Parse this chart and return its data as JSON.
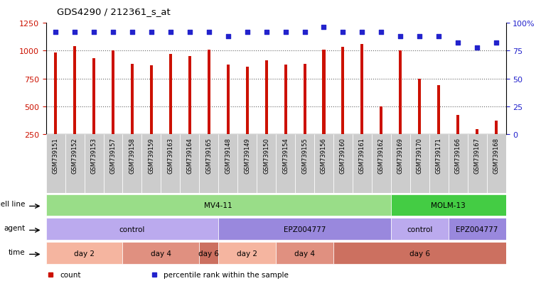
{
  "title": "GDS4290 / 212361_s_at",
  "samples": [
    "GSM739151",
    "GSM739152",
    "GSM739153",
    "GSM739157",
    "GSM739158",
    "GSM739159",
    "GSM739163",
    "GSM739164",
    "GSM739165",
    "GSM739148",
    "GSM739149",
    "GSM739150",
    "GSM739154",
    "GSM739155",
    "GSM739156",
    "GSM739160",
    "GSM739161",
    "GSM739162",
    "GSM739169",
    "GSM739170",
    "GSM739171",
    "GSM739166",
    "GSM739167",
    "GSM739168"
  ],
  "counts": [
    980,
    1040,
    930,
    1000,
    880,
    870,
    970,
    950,
    1010,
    875,
    855,
    910,
    875,
    880,
    1010,
    1035,
    1060,
    500,
    1000,
    745,
    690,
    420,
    295,
    370
  ],
  "percentile_ranks": [
    92,
    92,
    92,
    92,
    92,
    92,
    92,
    92,
    92,
    88,
    92,
    92,
    92,
    92,
    96,
    92,
    92,
    92,
    88,
    88,
    88,
    82,
    78,
    82
  ],
  "ylim_left": [
    250,
    1250
  ],
  "ylim_right": [
    0,
    100
  ],
  "yticks_left": [
    250,
    500,
    750,
    1000,
    1250
  ],
  "yticks_right": [
    0,
    25,
    50,
    75,
    100
  ],
  "bar_color": "#cc1100",
  "dot_color": "#2222cc",
  "grid_color": "#666666",
  "bg_color": "#ffffff",
  "xticklabel_bg": "#cccccc",
  "cell_line_row": {
    "label": "cell line",
    "groups": [
      {
        "text": "MV4-11",
        "start": 0,
        "end": 18,
        "color": "#99dd88"
      },
      {
        "text": "MOLM-13",
        "start": 18,
        "end": 24,
        "color": "#44cc44"
      }
    ]
  },
  "agent_row": {
    "label": "agent",
    "groups": [
      {
        "text": "control",
        "start": 0,
        "end": 9,
        "color": "#bbaaee"
      },
      {
        "text": "EPZ004777",
        "start": 9,
        "end": 18,
        "color": "#9988dd"
      },
      {
        "text": "control",
        "start": 18,
        "end": 21,
        "color": "#bbaaee"
      },
      {
        "text": "EPZ004777",
        "start": 21,
        "end": 24,
        "color": "#9988dd"
      }
    ]
  },
  "time_row": {
    "label": "time",
    "groups": [
      {
        "text": "day 2",
        "start": 0,
        "end": 4,
        "color": "#f5b5a0"
      },
      {
        "text": "day 4",
        "start": 4,
        "end": 8,
        "color": "#e09080"
      },
      {
        "text": "day 6",
        "start": 8,
        "end": 9,
        "color": "#cc7060"
      },
      {
        "text": "day 2",
        "start": 9,
        "end": 12,
        "color": "#f5b5a0"
      },
      {
        "text": "day 4",
        "start": 12,
        "end": 15,
        "color": "#e09080"
      },
      {
        "text": "day 6",
        "start": 15,
        "end": 24,
        "color": "#cc7060"
      }
    ]
  },
  "legend_items": [
    {
      "color": "#cc1100",
      "label": "count"
    },
    {
      "color": "#2222cc",
      "label": "percentile rank within the sample"
    }
  ]
}
